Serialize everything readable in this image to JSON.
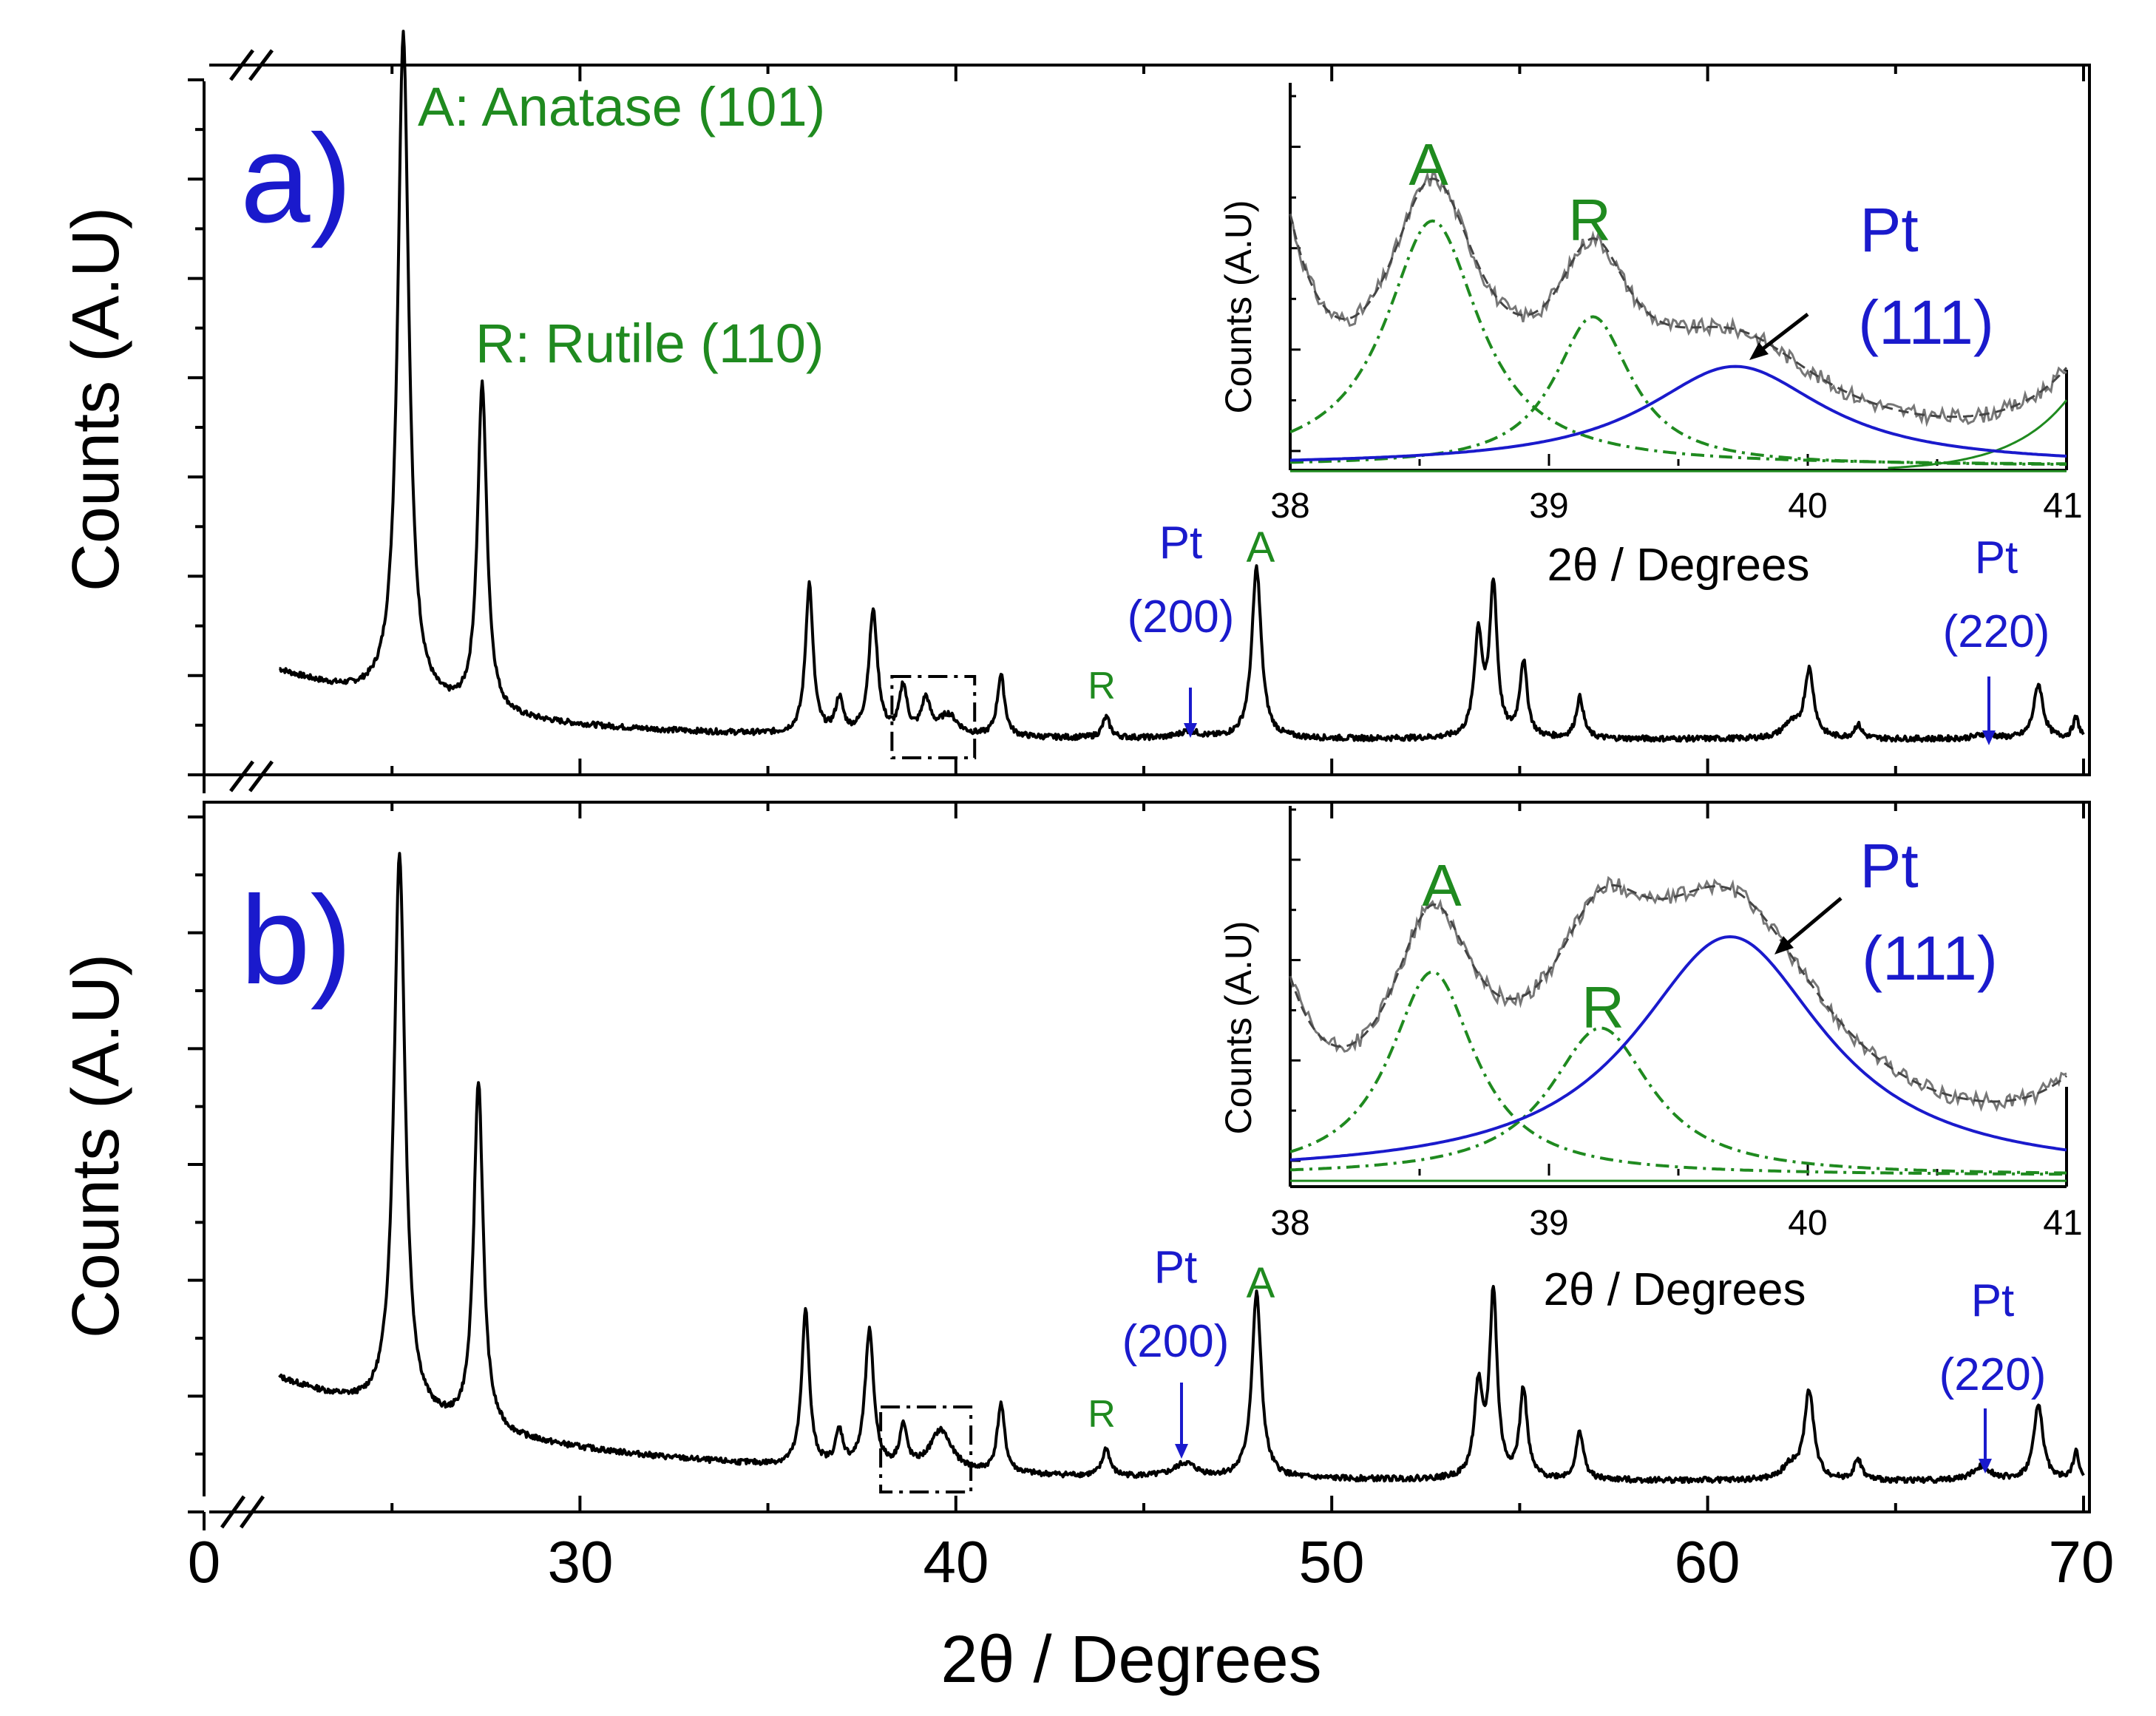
{
  "colors": {
    "black": "#000000",
    "green": "#1f8a1f",
    "blue": "#1a1acc",
    "gray": "#777777"
  },
  "x_axis": {
    "label": "2θ / Degrees",
    "ticks": [
      "0",
      "30",
      "40",
      "50",
      "60",
      "70"
    ]
  },
  "panels": [
    {
      "label": "a)",
      "ylabel": "Counts (A.U)",
      "annotations": {
        "anatase": "A: Anatase (101)",
        "rutile": "R: Rutile (110)",
        "r_small": "R",
        "a_small": "A",
        "pt200_a": "Pt",
        "pt200_b": "(200)",
        "pt220_a": "Pt",
        "pt220_b": "(220)"
      },
      "inset": {
        "ylabel": "Counts (A.U)",
        "xlabel": "2θ / Degrees",
        "ticks": [
          "38",
          "39",
          "40",
          "41"
        ],
        "label_A": "A",
        "label_R": "R",
        "label_pt1": "Pt",
        "label_pt2": "(111)"
      }
    },
    {
      "label": "b)",
      "ylabel": "Counts (A.U)",
      "annotations": {
        "r_small": "R",
        "a_small": "A",
        "pt200_a": "Pt",
        "pt200_b": "(200)",
        "pt220_a": "Pt",
        "pt220_b": "(220)"
      },
      "inset": {
        "ylabel": "Counts (A.U)",
        "xlabel": "2θ / Degrees",
        "ticks": [
          "38",
          "39",
          "40",
          "41"
        ],
        "label_A": "A",
        "label_R": "R",
        "label_pt1": "Pt",
        "label_pt2": "(111)"
      }
    }
  ],
  "chart_data": [
    {
      "type": "line",
      "title": "a)",
      "xlabel": "2θ / Degrees",
      "ylabel": "Counts (A.U)",
      "xlim": [
        20,
        70
      ],
      "ylim": [
        0,
        1
      ],
      "x_axis_break": true,
      "background": 0.1,
      "series": [
        {
          "name": "XRD pattern a",
          "start": 22,
          "end": 70
        }
      ],
      "peaks": [
        {
          "x": 25.3,
          "h": 0.98,
          "w": 0.18
        },
        {
          "x": 27.4,
          "h": 0.48,
          "w": 0.15
        },
        {
          "x": 36.1,
          "h": 0.22,
          "w": 0.12
        },
        {
          "x": 36.9,
          "h": 0.05,
          "w": 0.12
        },
        {
          "x": 37.8,
          "h": 0.18,
          "w": 0.14
        },
        {
          "x": 38.6,
          "h": 0.07,
          "w": 0.12
        },
        {
          "x": 39.2,
          "h": 0.05,
          "w": 0.14
        },
        {
          "x": 39.8,
          "h": 0.03,
          "w": 0.3
        },
        {
          "x": 41.2,
          "h": 0.09,
          "w": 0.12
        },
        {
          "x": 44.0,
          "h": 0.03,
          "w": 0.12
        },
        {
          "x": 46.2,
          "h": 0.01,
          "w": 0.3
        },
        {
          "x": 48.0,
          "h": 0.25,
          "w": 0.15
        },
        {
          "x": 53.9,
          "h": 0.15,
          "w": 0.13
        },
        {
          "x": 54.3,
          "h": 0.22,
          "w": 0.12
        },
        {
          "x": 55.1,
          "h": 0.11,
          "w": 0.12
        },
        {
          "x": 56.6,
          "h": 0.06,
          "w": 0.12
        },
        {
          "x": 62.2,
          "h": 0.02,
          "w": 0.25
        },
        {
          "x": 62.7,
          "h": 0.1,
          "w": 0.15
        },
        {
          "x": 64.0,
          "h": 0.02,
          "w": 0.12
        },
        {
          "x": 67.4,
          "h": 0.007,
          "w": 0.3
        },
        {
          "x": 68.8,
          "h": 0.08,
          "w": 0.15
        },
        {
          "x": 69.8,
          "h": 0.03,
          "w": 0.1
        }
      ],
      "highlight_box": {
        "x": [
          38.3,
          40.5
        ]
      },
      "labels": [
        {
          "text": "A: Anatase (101)",
          "x": 25.3
        },
        {
          "text": "R: Rutile (110)",
          "x": 27.4
        },
        {
          "text": "R",
          "x": 44.0
        },
        {
          "text": "Pt (200)",
          "x": 46.2
        },
        {
          "text": "A",
          "x": 48.0
        },
        {
          "text": "Pt (220)",
          "x": 67.4
        }
      ],
      "inset": {
        "type": "line",
        "xlim": [
          38,
          41
        ],
        "xlabel": "2θ / Degrees",
        "ylabel": "Counts (A.U)",
        "series": [
          {
            "name": "measured",
            "color": "gray",
            "style": "solid"
          },
          {
            "name": "fit envelope",
            "color": "gray",
            "style": "dashed"
          },
          {
            "name": "Anatase",
            "color": "green",
            "style": "dashdot",
            "center": 38.55,
            "height": 0.69,
            "hwhm": 0.22
          },
          {
            "name": "Rutile",
            "color": "green",
            "style": "dashdot",
            "center": 39.17,
            "height": 0.42,
            "hwhm": 0.18
          },
          {
            "name": "Pt (111)",
            "color": "blue",
            "style": "solid",
            "center": 39.72,
            "height": 0.28,
            "hwhm": 0.42
          }
        ]
      }
    },
    {
      "type": "line",
      "title": "b)",
      "xlabel": "2θ / Degrees",
      "ylabel": "Counts (A.U)",
      "xlim": [
        20,
        70
      ],
      "ylim": [
        0,
        1
      ],
      "x_axis_break": true,
      "background": 0.15,
      "series": [
        {
          "name": "XRD pattern b",
          "start": 22,
          "end": 70
        }
      ],
      "peaks": [
        {
          "x": 25.2,
          "h": 0.82,
          "w": 0.18
        },
        {
          "x": 27.3,
          "h": 0.51,
          "w": 0.15
        },
        {
          "x": 36.0,
          "h": 0.23,
          "w": 0.12
        },
        {
          "x": 36.9,
          "h": 0.05,
          "w": 0.12
        },
        {
          "x": 37.7,
          "h": 0.2,
          "w": 0.14
        },
        {
          "x": 38.6,
          "h": 0.06,
          "w": 0.12
        },
        {
          "x": 39.6,
          "h": 0.06,
          "w": 0.35
        },
        {
          "x": 41.2,
          "h": 0.1,
          "w": 0.12
        },
        {
          "x": 44.0,
          "h": 0.04,
          "w": 0.12
        },
        {
          "x": 46.1,
          "h": 0.02,
          "w": 0.35
        },
        {
          "x": 48.0,
          "h": 0.27,
          "w": 0.15
        },
        {
          "x": 53.9,
          "h": 0.13,
          "w": 0.13
        },
        {
          "x": 54.3,
          "h": 0.27,
          "w": 0.12
        },
        {
          "x": 55.1,
          "h": 0.13,
          "w": 0.12
        },
        {
          "x": 56.6,
          "h": 0.07,
          "w": 0.12
        },
        {
          "x": 62.2,
          "h": 0.02,
          "w": 0.25
        },
        {
          "x": 62.7,
          "h": 0.13,
          "w": 0.15
        },
        {
          "x": 64.0,
          "h": 0.03,
          "w": 0.12
        },
        {
          "x": 67.3,
          "h": 0.02,
          "w": 0.3
        },
        {
          "x": 68.8,
          "h": 0.11,
          "w": 0.15
        },
        {
          "x": 69.8,
          "h": 0.04,
          "w": 0.1
        }
      ],
      "highlight_box": {
        "x": [
          38.0,
          40.4
        ]
      },
      "labels": [
        {
          "text": "R",
          "x": 44.0
        },
        {
          "text": "Pt (200)",
          "x": 46.1
        },
        {
          "text": "A",
          "x": 48.0
        },
        {
          "text": "Pt (220)",
          "x": 67.3
        }
      ],
      "inset": {
        "type": "line",
        "xlim": [
          38,
          41
        ],
        "xlabel": "2θ / Degrees",
        "ylabel": "Counts (A.U)",
        "series": [
          {
            "name": "measured",
            "color": "gray",
            "style": "solid"
          },
          {
            "name": "fit envelope",
            "color": "gray",
            "style": "dashed"
          },
          {
            "name": "Anatase",
            "color": "green",
            "style": "dashdot",
            "center": 38.55,
            "height": 0.58,
            "hwhm": 0.2
          },
          {
            "name": "Rutile",
            "color": "green",
            "style": "dashdot",
            "center": 39.2,
            "height": 0.42,
            "hwhm": 0.24
          },
          {
            "name": "Pt (111)",
            "color": "blue",
            "style": "solid",
            "center": 39.7,
            "height": 0.68,
            "hwhm": 0.45
          }
        ]
      }
    }
  ]
}
